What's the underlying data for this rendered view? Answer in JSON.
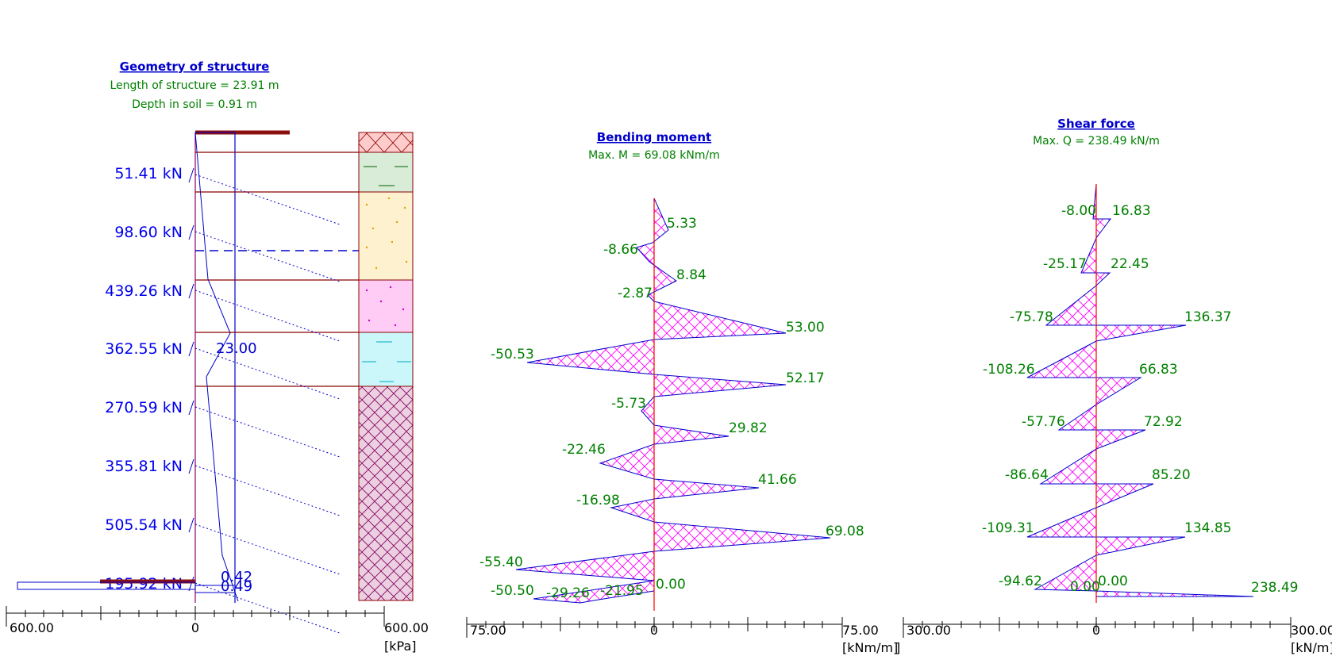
{
  "colors": {
    "structure_blue": "#0000cc",
    "value_green": "#008000",
    "layer_line": "#8b0000",
    "hatch_magenta": "#ff00ff",
    "axis_red": "#ff0000"
  },
  "geometry": {
    "title": "Geometry of structure",
    "length_label": "Length of structure = 23.91 m",
    "depth_label": "Depth in soil = 0.91 m",
    "dimension_label": "23.00",
    "small_values": [
      "0.42",
      "0.49"
    ],
    "anchors": [
      "51.41 kN",
      "98.60 kN",
      "439.26 kN",
      "362.55 kN",
      "270.59 kN",
      "355.81 kN",
      "505.54 kN",
      "195.92 kN"
    ],
    "axis": {
      "min_label": "600.00",
      "zero_label": "0",
      "max_label": "600.00",
      "unit": "[kPa]"
    },
    "soil_layers": [
      "crossed",
      "green-water",
      "sand",
      "pink-dots",
      "cyan-water",
      "rock-hatched"
    ]
  },
  "bending": {
    "title": "Bending moment",
    "max_label": "Max. M = 69.08 kNm/m",
    "axis": {
      "min_label": "75.00",
      "zero_label": "0",
      "max_label": "75.00",
      "unit": "[kNm/m]"
    },
    "extra_bracket": "]"
  },
  "shear": {
    "title": "Shear force",
    "max_label": "Max. Q = 238.49 kN/m",
    "axis": {
      "min_label": "300.00",
      "zero_label": "0",
      "max_label": "300.00",
      "unit": "[kN/m]"
    }
  },
  "chart_data": [
    {
      "type": "line",
      "title": "Bending moment",
      "xlabel": "[kNm/m]",
      "xlim": [
        -75,
        75
      ],
      "depth_order_points": [
        0,
        5.33,
        -8.66,
        8.84,
        -2.87,
        53.0,
        -50.53,
        52.17,
        -5.73,
        29.82,
        -22.46,
        41.66,
        -16.98,
        69.08,
        -55.4,
        0.0,
        -50.5,
        -29.26,
        -21.95,
        0
      ],
      "labels": [
        "5.33",
        "-8.66",
        "8.84",
        "-2.87",
        "53.00",
        "-50.53",
        "52.17",
        "-5.73",
        "29.82",
        "-22.46",
        "41.66",
        "-16.98",
        "69.08",
        "-55.40",
        "0.00",
        "-50.50",
        "-29.26",
        "-21.95"
      ]
    },
    {
      "type": "line",
      "title": "Shear force",
      "xlabel": "[kN/m]",
      "xlim": [
        -300,
        300
      ],
      "pairs": [
        [
          "-8.00",
          "16.83"
        ],
        [
          "-25.17",
          "22.45"
        ],
        [
          "-75.78",
          "136.37"
        ],
        [
          "-108.26",
          "66.83"
        ],
        [
          "-57.76",
          "72.92"
        ],
        [
          "-86.64",
          "85.20"
        ],
        [
          "-109.31",
          "134.85"
        ],
        [
          "-94.62",
          "0.00"
        ],
        [
          "0.00",
          "238.49"
        ]
      ],
      "values": [
        -8.0,
        16.83,
        -25.17,
        22.45,
        -75.78,
        136.37,
        -108.26,
        66.83,
        -57.76,
        72.92,
        -86.64,
        85.2,
        -109.31,
        134.85,
        -94.62,
        0.0,
        0.0,
        238.49
      ]
    }
  ]
}
